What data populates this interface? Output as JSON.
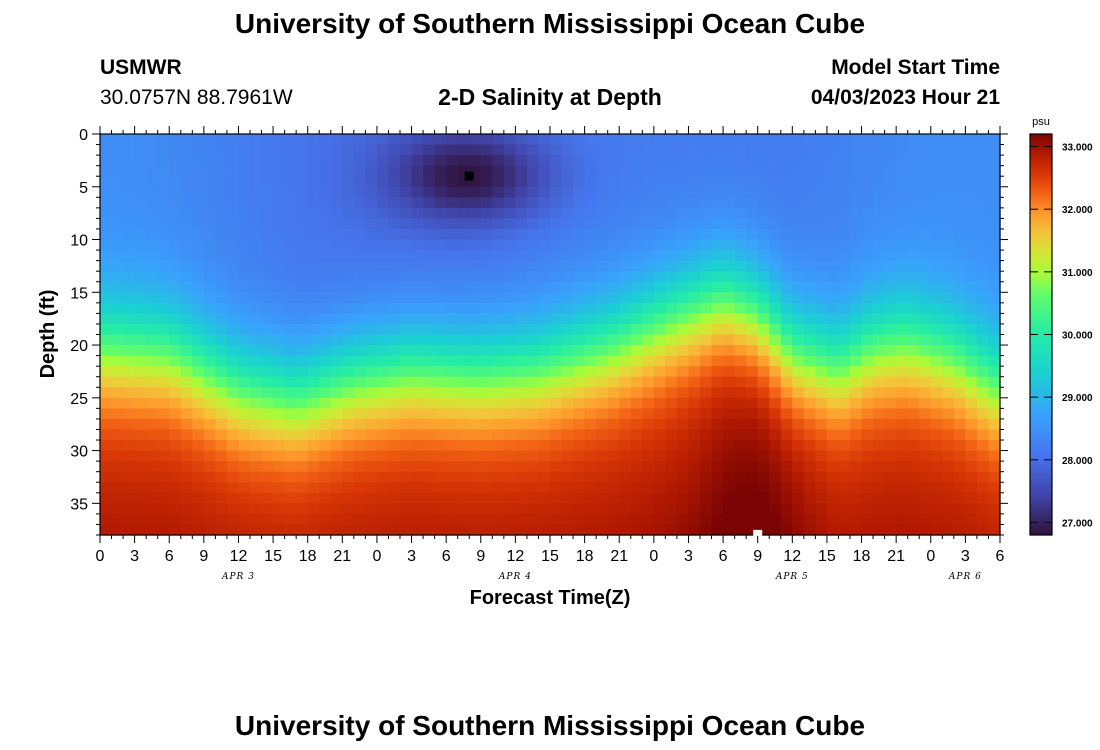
{
  "header": {
    "title": "University of Southern Mississippi Ocean Cube",
    "station": "USMWR",
    "coords": "30.0757N  88.7961W",
    "chart_title": "2-D Salinity at Depth",
    "model_label": "Model Start Time",
    "model_time": "04/03/2023 Hour 21"
  },
  "footer": {
    "title": "University of Southern Mississippi Ocean Cube"
  },
  "chart_data": {
    "type": "heatmap",
    "title": "2-D Salinity at Depth",
    "xlabel": "Forecast Time(Z)",
    "ylabel": "Depth (ft)",
    "x_tick_labels": [
      "0",
      "3",
      "6",
      "9",
      "12",
      "15",
      "18",
      "21",
      "0",
      "3",
      "6",
      "9",
      "12",
      "15",
      "18",
      "21",
      "0",
      "3",
      "6",
      "9",
      "12",
      "15",
      "18",
      "21",
      "0",
      "3",
      "6"
    ],
    "day_labels": [
      {
        "label": "APR 3",
        "hour": 12
      },
      {
        "label": "APR 4",
        "hour": 36
      },
      {
        "label": "APR 5",
        "hour": 60
      },
      {
        "label": "APR 6",
        "hour": 75
      }
    ],
    "xlim_hours": [
      0,
      78
    ],
    "ylim_ft": [
      0,
      38
    ],
    "y_ticks": [
      0,
      5,
      10,
      15,
      20,
      25,
      30,
      35
    ],
    "colorbar": {
      "unit": "psu",
      "min": 26.8,
      "max": 33.2,
      "tick_labels": [
        "33.000",
        "32.000",
        "31.000",
        "30.000",
        "29.000",
        "28.000",
        "27.000"
      ],
      "tick_values": [
        33,
        32,
        31,
        30,
        29,
        28,
        27
      ]
    },
    "markers": [
      {
        "kind": "min",
        "hour": 32,
        "depth": 4,
        "color": "#000000"
      },
      {
        "kind": "max",
        "hour": 57,
        "depth": 37.8,
        "color": "#ffffff"
      }
    ],
    "halocline_depth_ft": {
      "hours": [
        0,
        6,
        12,
        17,
        22,
        27,
        33,
        38,
        44,
        50,
        54,
        57,
        60,
        64,
        67,
        70,
        74,
        78
      ],
      "values": [
        20,
        20.5,
        24,
        25,
        23,
        22,
        22.5,
        22,
        20,
        17,
        15.5,
        17,
        20.5,
        22,
        20,
        19.5,
        21,
        24
      ]
    },
    "min_core": {
      "hour": 32,
      "depth": 4,
      "value": 26.8
    },
    "series_summary": {
      "surface_fresh_psu": 28.2,
      "bottom_salty_psu": 32.6
    }
  }
}
